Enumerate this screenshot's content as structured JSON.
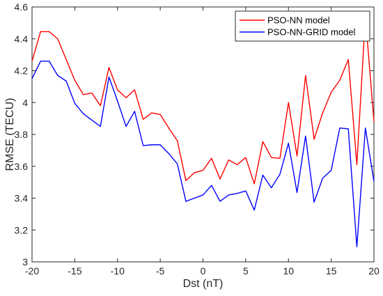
{
  "chart_data": {
    "type": "line",
    "title": "",
    "xlabel": "Dst (nT)",
    "ylabel": "RMSE (TECU)",
    "xlim": [
      -20,
      20
    ],
    "ylim": [
      3,
      4.6
    ],
    "xticks": [
      -20,
      -15,
      -10,
      -5,
      0,
      5,
      10,
      15,
      20
    ],
    "yticks": [
      3,
      3.2,
      3.4,
      3.6,
      3.8,
      4,
      4.2,
      4.4,
      4.6
    ],
    "x": [
      -20,
      -19,
      -18,
      -17,
      -16,
      -15,
      -14,
      -13,
      -12,
      -11,
      -10,
      -9,
      -8,
      -7,
      -6,
      -5,
      -4,
      -3,
      -2,
      -1,
      0,
      1,
      2,
      3,
      4,
      5,
      6,
      7,
      8,
      9,
      10,
      11,
      12,
      13,
      14,
      15,
      16,
      17,
      18,
      19,
      20
    ],
    "series": [
      {
        "name": "PSO-NN model",
        "color": "#ff0000",
        "values": [
          4.26,
          4.445,
          4.445,
          4.4,
          4.27,
          4.14,
          4.05,
          4.06,
          3.98,
          4.22,
          4.08,
          4.03,
          4.08,
          3.895,
          3.935,
          3.925,
          3.84,
          3.76,
          3.51,
          3.56,
          3.575,
          3.65,
          3.52,
          3.64,
          3.61,
          3.655,
          3.49,
          3.755,
          3.655,
          3.65,
          4.0,
          3.665,
          4.17,
          3.77,
          3.935,
          4.065,
          4.14,
          4.27,
          3.61,
          4.54,
          3.88
        ]
      },
      {
        "name": "PSO-NN-GRID model",
        "color": "#0000ff",
        "values": [
          4.15,
          4.26,
          4.26,
          4.17,
          4.135,
          3.995,
          3.93,
          3.89,
          3.85,
          4.16,
          4.01,
          3.85,
          3.945,
          3.73,
          3.735,
          3.735,
          3.68,
          3.615,
          3.38,
          3.4,
          3.42,
          3.48,
          3.38,
          3.42,
          3.43,
          3.445,
          3.325,
          3.545,
          3.465,
          3.55,
          3.745,
          3.435,
          3.79,
          3.375,
          3.525,
          3.575,
          3.84,
          3.835,
          3.095,
          3.84,
          3.505
        ]
      }
    ],
    "grid": false,
    "legend_position": "top-right"
  }
}
